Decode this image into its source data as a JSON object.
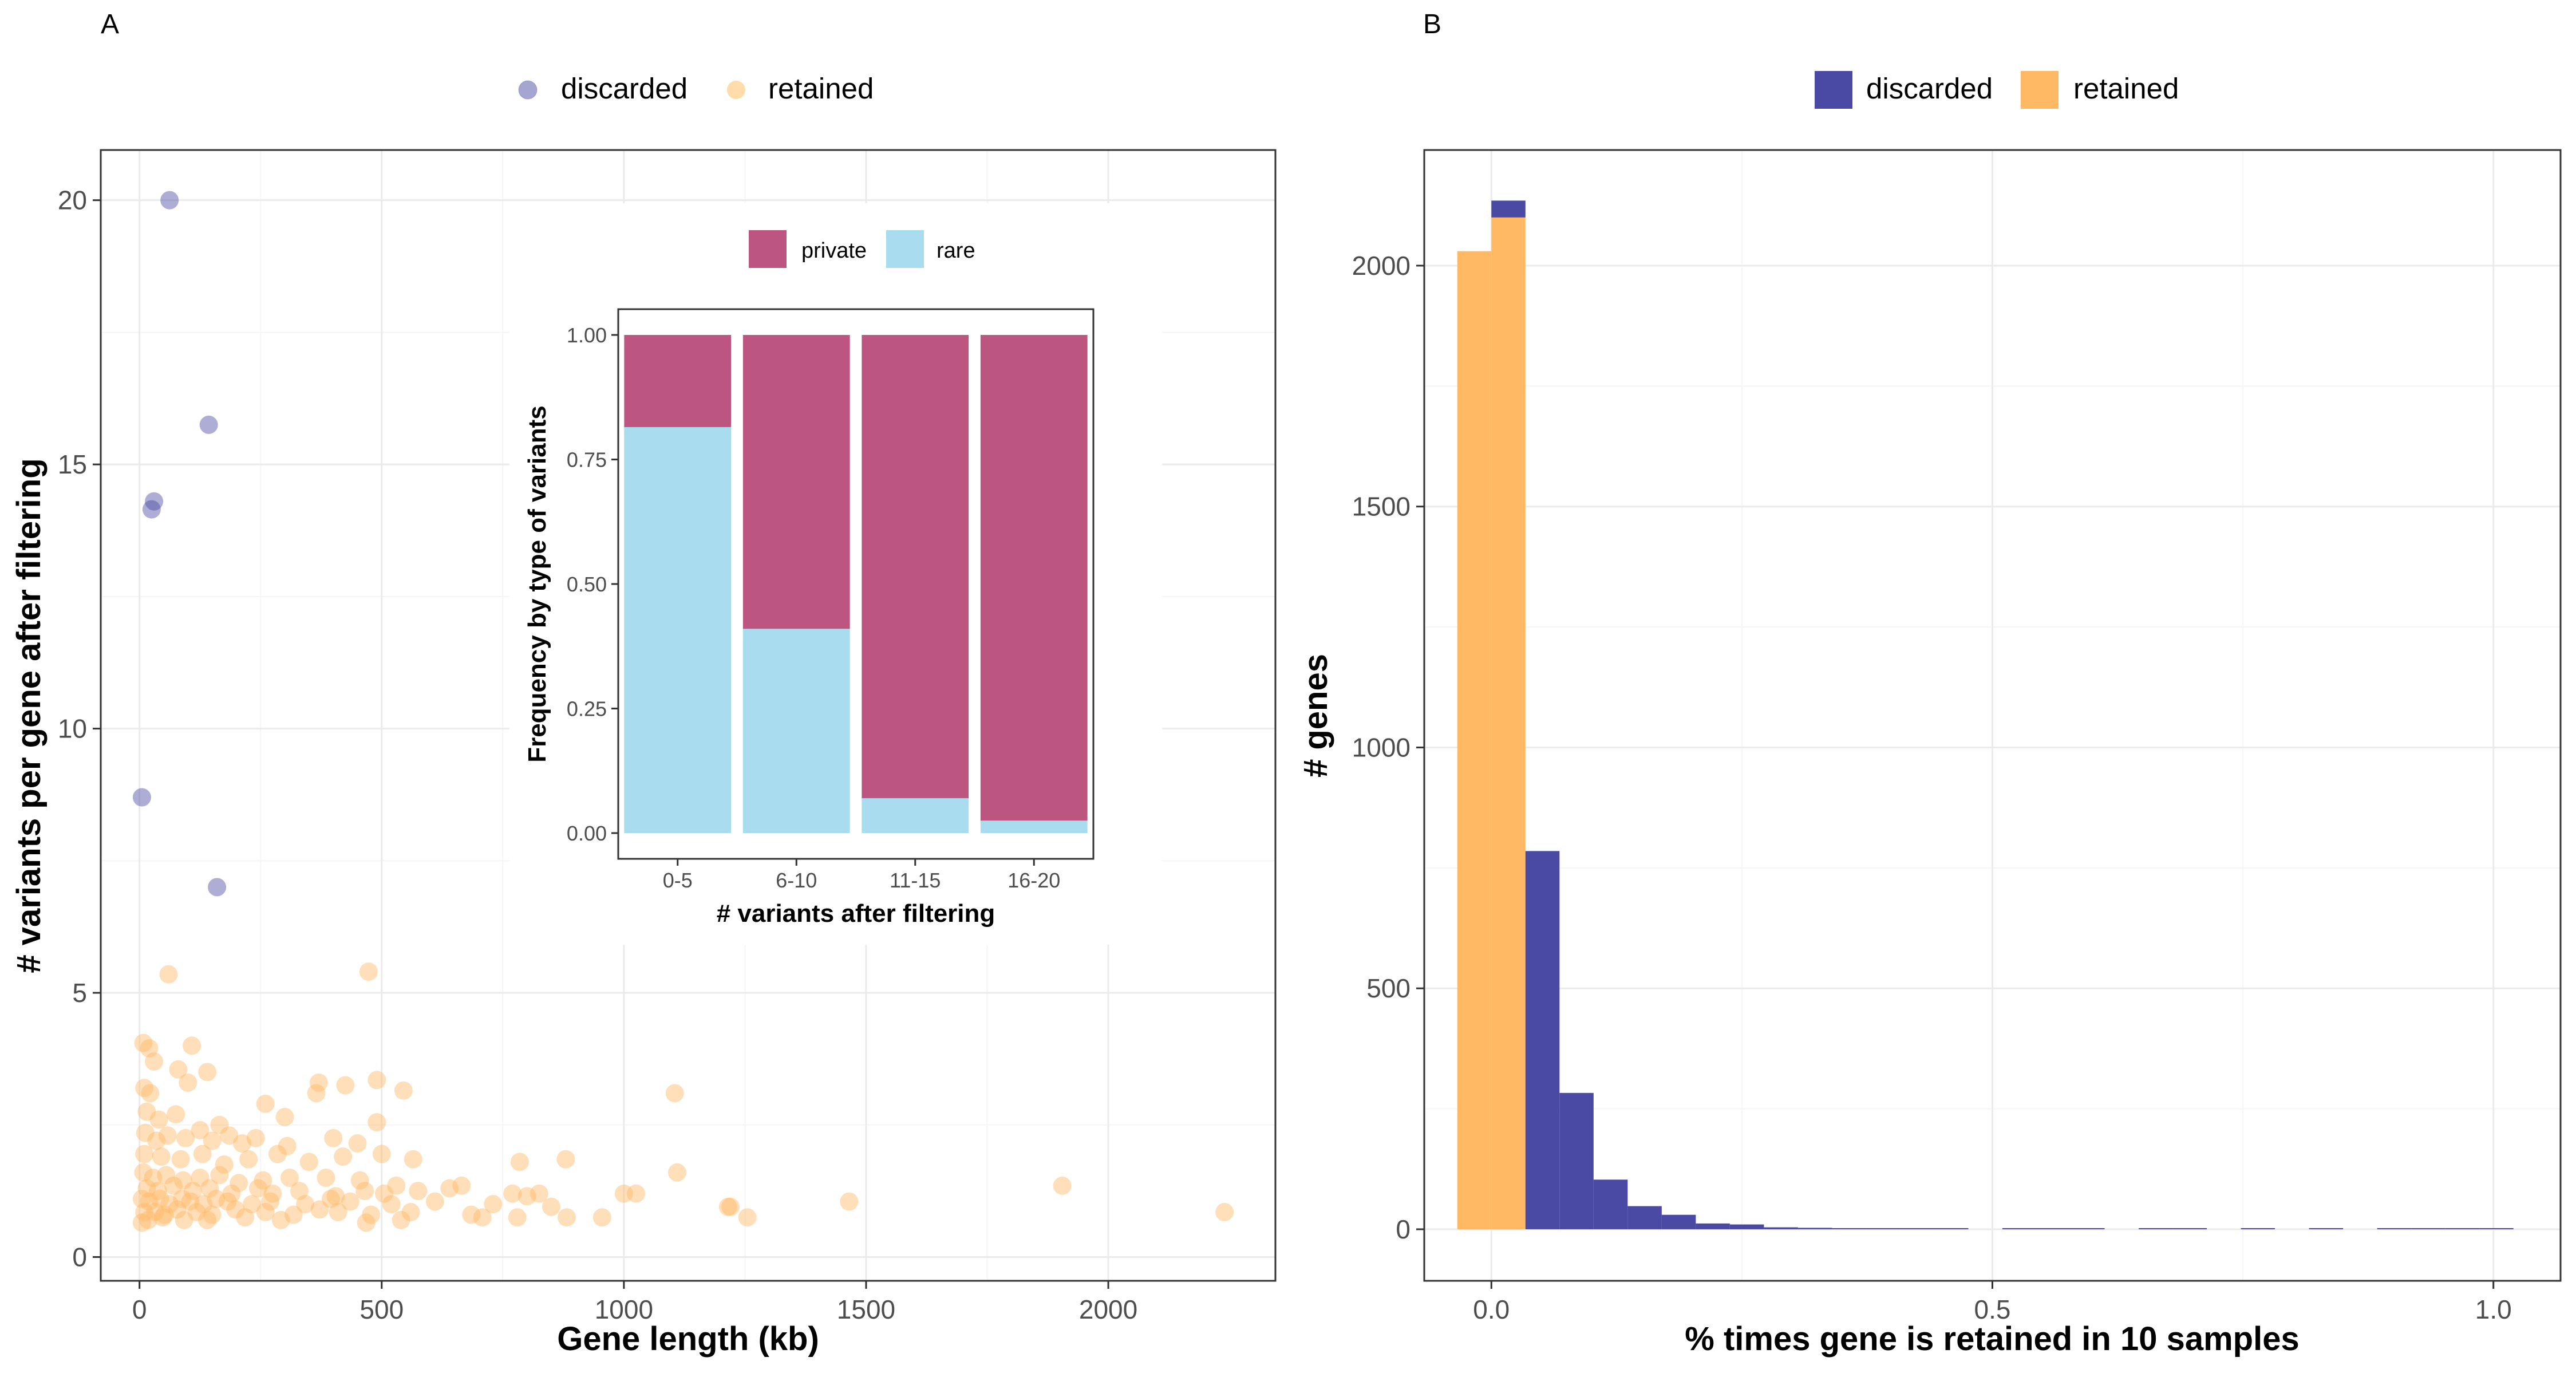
{
  "colors": {
    "discarded": "#4a4aa4",
    "retained": "#ffb964",
    "discarded_point": "#a5a5d2",
    "retained_point": "#ffdcaa",
    "private": "#bc5580",
    "rare": "#a8dcee",
    "grid_major": "#ebebeb",
    "grid_minor": "#f5f5f5",
    "axis_text": "#4d4d4d",
    "panel_border": "#333333"
  },
  "chart_data": [
    {
      "type": "scatter",
      "panel_label": "A",
      "xlabel": "Gene length (kb)",
      "ylabel": "# variants per gene after filtering",
      "xlim": [
        -80,
        2345
      ],
      "ylim": [
        -0.45,
        20.95
      ],
      "x_ticks": [
        0,
        500,
        1000,
        1500,
        2000
      ],
      "y_ticks": [
        0,
        5,
        10,
        15,
        20
      ],
      "legend": [
        "discarded",
        "retained"
      ],
      "legend_position": "top",
      "series": [
        {
          "name": "discarded",
          "points": [
            [
              62,
              20.0
            ],
            [
              143,
              15.75
            ],
            [
              30,
              14.3
            ],
            [
              25,
              14.15
            ],
            [
              5,
              8.7
            ],
            [
              160,
              7.0
            ]
          ]
        },
        {
          "name": "retained",
          "points": [
            [
              60,
              5.35
            ],
            [
              473,
              5.4
            ],
            [
              8,
              4.05
            ],
            [
              108,
              4.0
            ],
            [
              20,
              3.95
            ],
            [
              80,
              3.55
            ],
            [
              30,
              3.7
            ],
            [
              140,
              3.5
            ],
            [
              10,
              3.2
            ],
            [
              22,
              3.1
            ],
            [
              100,
              3.3
            ],
            [
              260,
              2.9
            ],
            [
              370,
              3.3
            ],
            [
              425,
              3.25
            ],
            [
              490,
              3.35
            ],
            [
              545,
              3.15
            ],
            [
              365,
              3.1
            ],
            [
              1105,
              3.1
            ],
            [
              15,
              2.75
            ],
            [
              40,
              2.6
            ],
            [
              75,
              2.7
            ],
            [
              125,
              2.4
            ],
            [
              165,
              2.5
            ],
            [
              300,
              2.65
            ],
            [
              490,
              2.55
            ],
            [
              12,
              2.35
            ],
            [
              35,
              2.2
            ],
            [
              58,
              2.3
            ],
            [
              95,
              2.25
            ],
            [
              150,
              2.2
            ],
            [
              185,
              2.3
            ],
            [
              212,
              2.15
            ],
            [
              240,
              2.25
            ],
            [
              305,
              2.1
            ],
            [
              400,
              2.25
            ],
            [
              450,
              2.15
            ],
            [
              10,
              1.95
            ],
            [
              45,
              1.9
            ],
            [
              85,
              1.85
            ],
            [
              130,
              1.95
            ],
            [
              175,
              1.75
            ],
            [
              225,
              1.85
            ],
            [
              285,
              1.95
            ],
            [
              350,
              1.8
            ],
            [
              420,
              1.9
            ],
            [
              500,
              1.95
            ],
            [
              565,
              1.85
            ],
            [
              785,
              1.8
            ],
            [
              880,
              1.85
            ],
            [
              1110,
              1.6
            ],
            [
              8,
              1.6
            ],
            [
              28,
              1.5
            ],
            [
              55,
              1.55
            ],
            [
              90,
              1.45
            ],
            [
              125,
              1.5
            ],
            [
              165,
              1.55
            ],
            [
              205,
              1.4
            ],
            [
              255,
              1.45
            ],
            [
              310,
              1.5
            ],
            [
              385,
              1.5
            ],
            [
              455,
              1.45
            ],
            [
              530,
              1.35
            ],
            [
              640,
              1.3
            ],
            [
              665,
              1.35
            ],
            [
              770,
              1.2
            ],
            [
              800,
              1.15
            ],
            [
              825,
              1.2
            ],
            [
              1000,
              1.2
            ],
            [
              1025,
              1.2
            ],
            [
              1905,
              1.35
            ],
            [
              15,
              1.3
            ],
            [
              38,
              1.25
            ],
            [
              70,
              1.35
            ],
            [
              110,
              1.25
            ],
            [
              145,
              1.3
            ],
            [
              190,
              1.2
            ],
            [
              245,
              1.3
            ],
            [
              275,
              1.2
            ],
            [
              330,
              1.25
            ],
            [
              405,
              1.15
            ],
            [
              465,
              1.25
            ],
            [
              505,
              1.2
            ],
            [
              575,
              1.25
            ],
            [
              1465,
              1.05
            ],
            [
              5,
              1.1
            ],
            [
              20,
              1.05
            ],
            [
              42,
              1.1
            ],
            [
              62,
              1.0
            ],
            [
              88,
              1.1
            ],
            [
              105,
              1.05
            ],
            [
              132,
              1.0
            ],
            [
              158,
              1.1
            ],
            [
              182,
              1.05
            ],
            [
              232,
              1.0
            ],
            [
              270,
              1.05
            ],
            [
              342,
              1.0
            ],
            [
              395,
              1.1
            ],
            [
              435,
              1.05
            ],
            [
              520,
              1.0
            ],
            [
              610,
              1.05
            ],
            [
              730,
              1.0
            ],
            [
              850,
              0.95
            ],
            [
              1215,
              0.95
            ],
            [
              1220,
              0.95
            ],
            [
              10,
              0.85
            ],
            [
              32,
              0.85
            ],
            [
              52,
              0.8
            ],
            [
              78,
              0.9
            ],
            [
              118,
              0.85
            ],
            [
              150,
              0.8
            ],
            [
              198,
              0.9
            ],
            [
              260,
              0.85
            ],
            [
              318,
              0.8
            ],
            [
              372,
              0.9
            ],
            [
              410,
              0.85
            ],
            [
              478,
              0.8
            ],
            [
              560,
              0.85
            ],
            [
              685,
              0.8
            ],
            [
              708,
              0.75
            ],
            [
              780,
              0.75
            ],
            [
              882,
              0.75
            ],
            [
              955,
              0.75
            ],
            [
              1255,
              0.75
            ],
            [
              2240,
              0.85
            ],
            [
              18,
              0.7
            ],
            [
              48,
              0.75
            ],
            [
              92,
              0.7
            ],
            [
              140,
              0.7
            ],
            [
              218,
              0.75
            ],
            [
              292,
              0.7
            ],
            [
              468,
              0.65
            ],
            [
              540,
              0.7
            ],
            [
              5,
              0.65
            ]
          ]
        }
      ]
    },
    {
      "type": "bar",
      "stacked": true,
      "title": "",
      "xlabel": "# variants after filtering",
      "ylabel": "Frequency by type of variants",
      "categories": [
        "0-5",
        "6-10",
        "11-15",
        "16-20"
      ],
      "ylim": [
        0,
        1
      ],
      "y_ticks": [
        "0.00",
        "0.25",
        "0.50",
        "0.75",
        "1.00"
      ],
      "legend": [
        "private",
        "rare"
      ],
      "legend_position": "top",
      "series": [
        {
          "name": "rare",
          "values": [
            0.815,
            0.41,
            0.07,
            0.025
          ]
        },
        {
          "name": "private",
          "values": [
            0.185,
            0.59,
            0.93,
            0.975
          ]
        }
      ]
    },
    {
      "type": "bar",
      "histogram": true,
      "panel_label": "B",
      "xlabel": "% times gene is retained in 10 samples",
      "ylabel": "# genes",
      "xlim": [
        -0.067,
        1.067
      ],
      "ylim": [
        -107,
        2240
      ],
      "x_ticks": [
        "0.0",
        "0.5",
        "1.0"
      ],
      "y_ticks": [
        0,
        500,
        1000,
        1500,
        2000
      ],
      "bin_width": 0.034,
      "legend": [
        "discarded",
        "retained"
      ],
      "legend_position": "top",
      "series": [
        {
          "name": "retained",
          "bins": [
            [
              -0.017,
              2030
            ],
            [
              0.017,
              2100
            ]
          ]
        },
        {
          "name": "discarded",
          "bins": [
            [
              0.017,
              35
            ],
            [
              0.051,
              785
            ],
            [
              0.085,
              283
            ],
            [
              0.119,
              103
            ],
            [
              0.153,
              48
            ],
            [
              0.187,
              30
            ],
            [
              0.221,
              12
            ],
            [
              0.255,
              10
            ],
            [
              0.289,
              4
            ],
            [
              0.323,
              3
            ],
            [
              0.357,
              2
            ],
            [
              0.391,
              2
            ],
            [
              0.425,
              2
            ],
            [
              0.459,
              1
            ],
            [
              0.527,
              1
            ],
            [
              0.561,
              2
            ],
            [
              0.595,
              2
            ],
            [
              0.663,
              1
            ],
            [
              0.697,
              1
            ],
            [
              0.765,
              1
            ],
            [
              0.833,
              1
            ],
            [
              0.901,
              1
            ],
            [
              0.935,
              1
            ],
            [
              0.969,
              1
            ],
            [
              1.003,
              1
            ]
          ]
        }
      ]
    }
  ]
}
